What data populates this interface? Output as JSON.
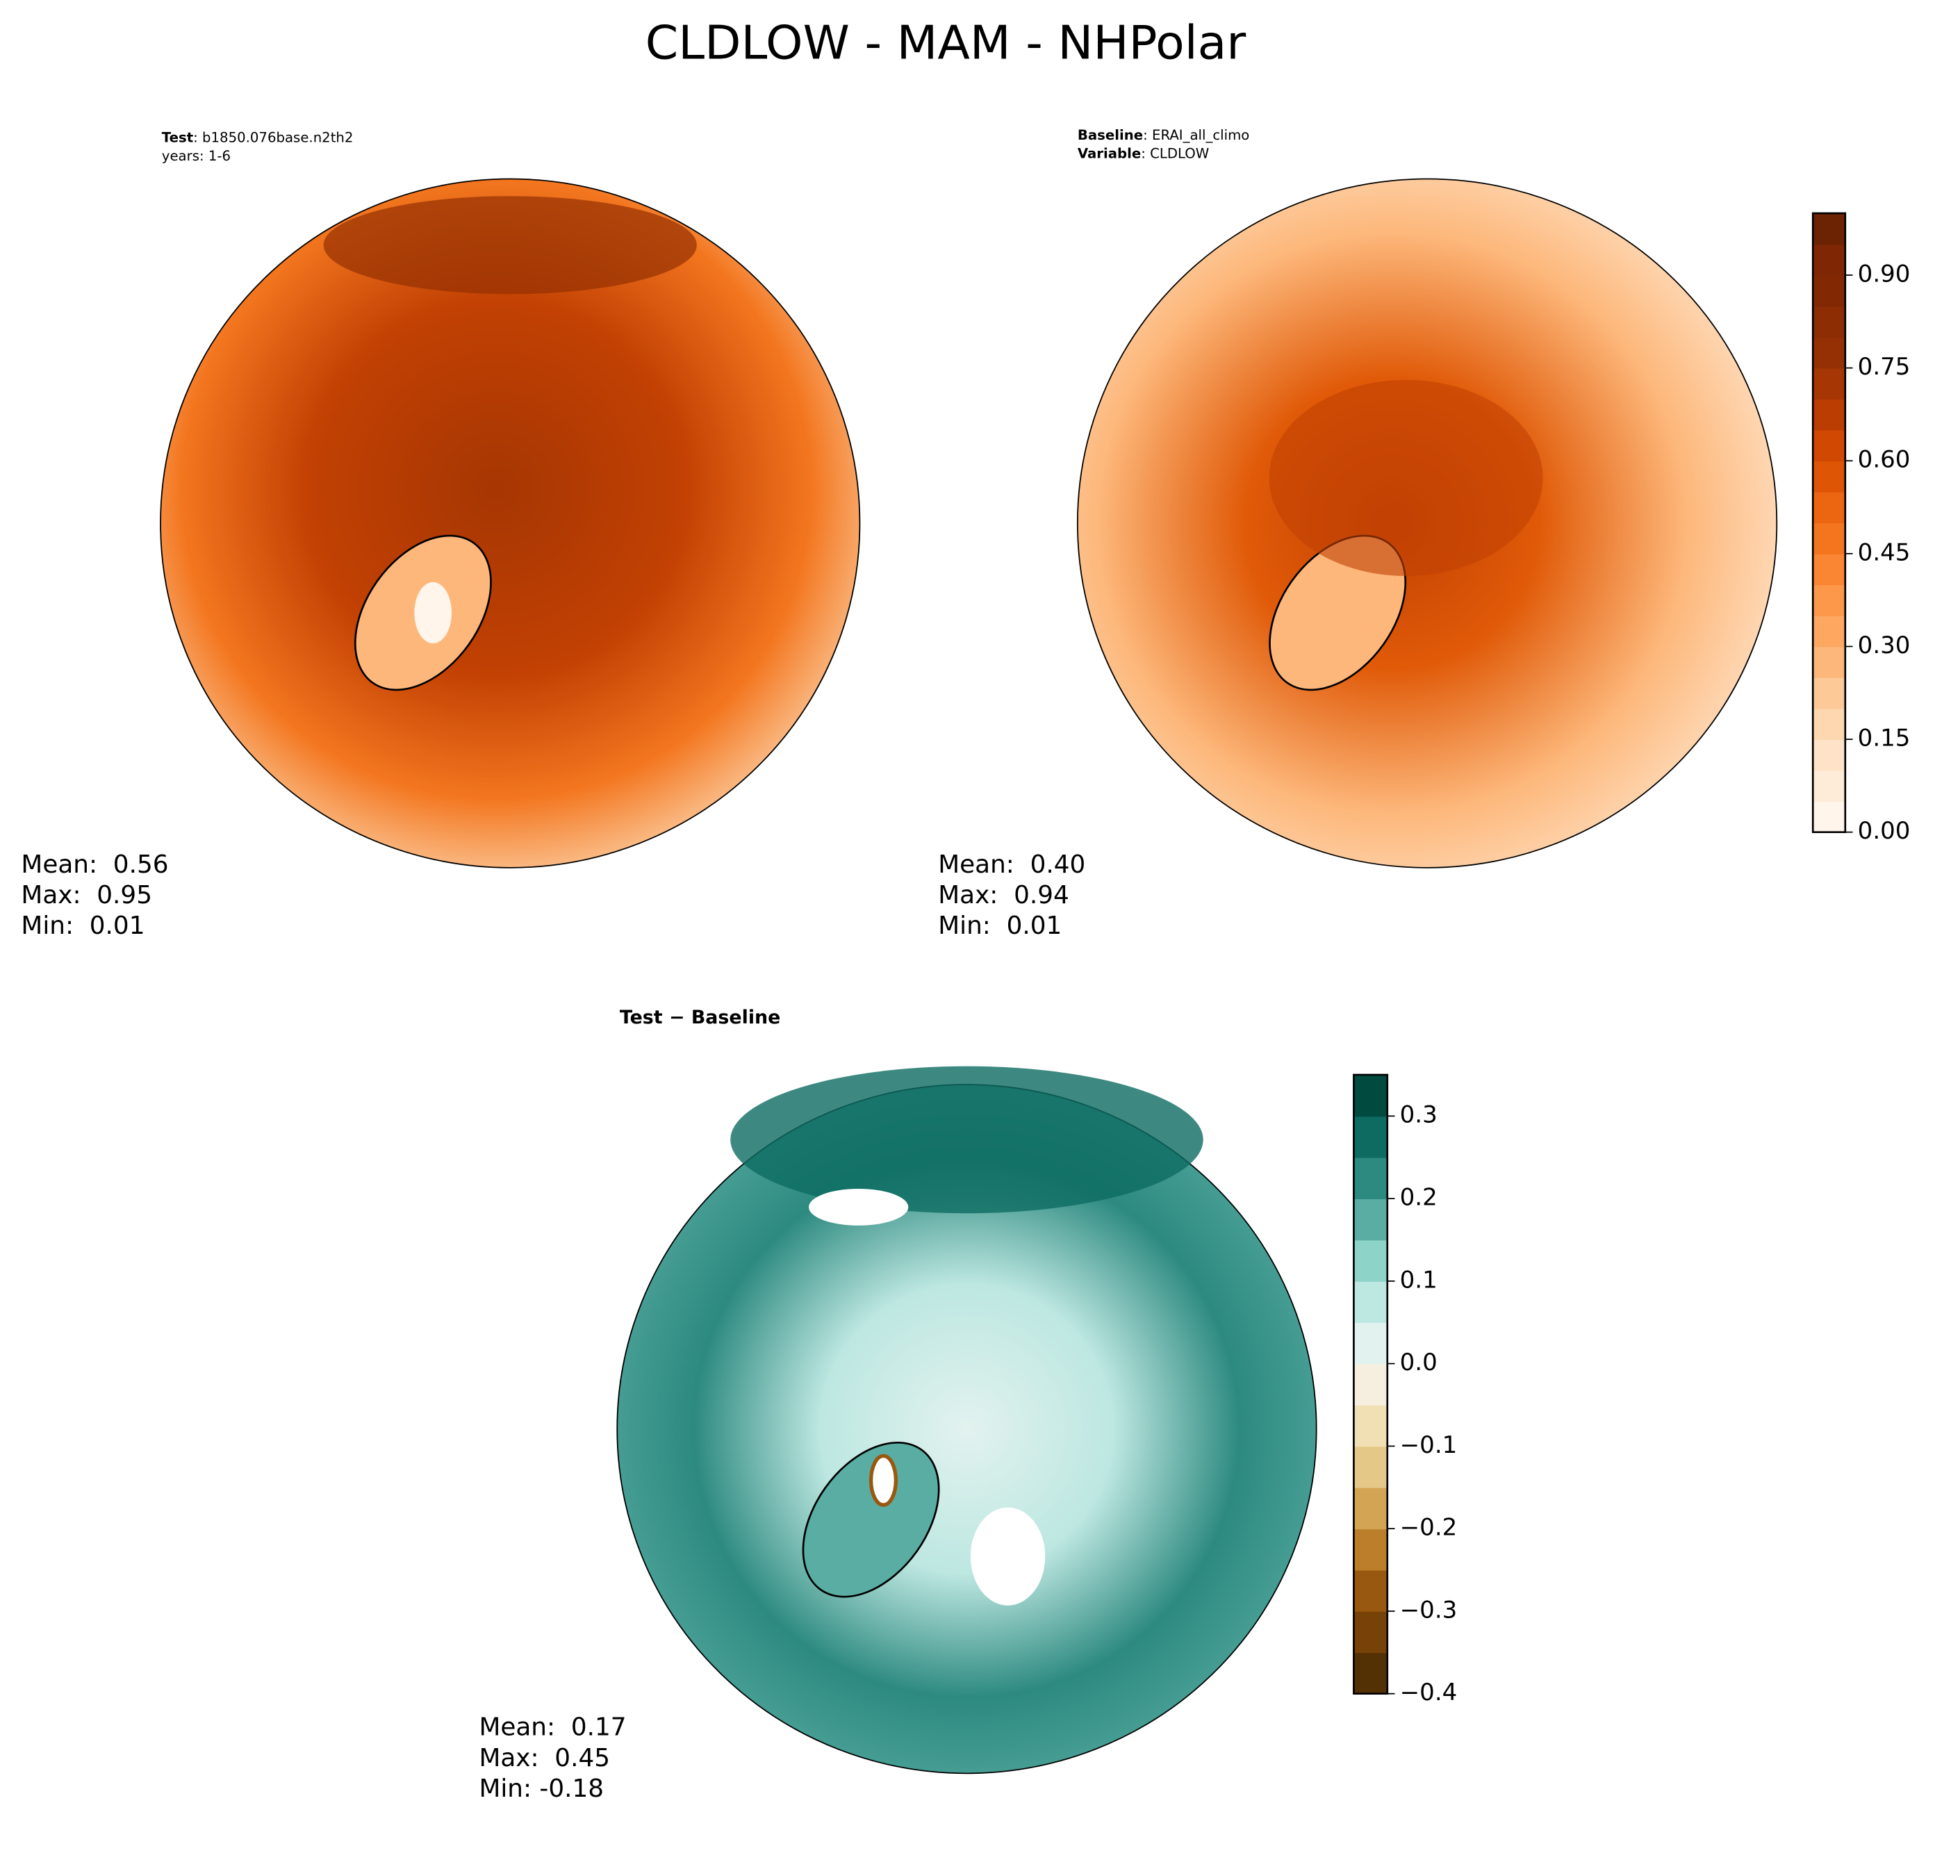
{
  "title": "CLDLOW - MAM - NHPolar",
  "panels": [
    {
      "header": [
        {
          "key": "Test",
          "text": ": b1850.076base.n2th2"
        },
        {
          "text": "years: 1-6"
        }
      ],
      "stats": [
        "Mean:  0.56",
        "Max:  0.95",
        "Min:  0.01"
      ]
    },
    {
      "header": [
        {
          "key": "Baseline",
          "text": ": ERAI_all_climo"
        },
        {
          "key": "Variable",
          "text": ": CLDLOW"
        }
      ],
      "stats": [
        "Mean:  0.40",
        "Max:  0.94",
        "Min:  0.01"
      ]
    },
    {
      "header": [
        {
          "key": "Test − Baseline"
        }
      ],
      "stats": [
        "Mean:  0.17",
        "Max:  0.45",
        "Min: -0.18"
      ]
    }
  ],
  "colorbars": [
    {
      "range": [
        0,
        1
      ],
      "ticks": [
        {
          "value": 0,
          "label": "0.00"
        },
        {
          "value": 0.15,
          "label": "0.15"
        },
        {
          "value": 0.3,
          "label": "0.30"
        },
        {
          "value": 0.45,
          "label": "0.45"
        },
        {
          "value": 0.6,
          "label": "0.60"
        },
        {
          "value": 0.75,
          "label": "0.75"
        },
        {
          "value": 0.9,
          "label": "0.90"
        }
      ],
      "colors": [
        "#fff5eb",
        "#feecd9",
        "#fee3c8",
        "#fdd7af",
        "#fdc997",
        "#fdb77a",
        "#fda761",
        "#fd974a",
        "#fa8532",
        "#f3761f",
        "#ec6510",
        "#df5506",
        "#d04801",
        "#bb3d02",
        "#a63603",
        "#943003",
        "#8c2d04",
        "#822904",
        "#7f2704",
        "#6b2303"
      ]
    },
    {
      "range": [
        -0.4,
        0.35
      ],
      "ticks": [
        {
          "value": -0.4,
          "label": "−0.4"
        },
        {
          "value": -0.3,
          "label": "−0.3"
        },
        {
          "value": -0.2,
          "label": "−0.2"
        },
        {
          "value": -0.1,
          "label": "−0.1"
        },
        {
          "value": 0,
          "label": "0.0"
        },
        0.1,
        0.2,
        0.3
      ],
      "colors": [
        "#543005",
        "#774207",
        "#995810",
        "#bb7e2b",
        "#d3a453",
        "#e4c887",
        "#f1e0b4",
        "#f6efdf",
        "#e2f2ef",
        "#bde7e1",
        "#8ed3c8",
        "#5aada3",
        "#2d8a80",
        "#0d6b62",
        "#004a3f"
      ]
    }
  ]
}
